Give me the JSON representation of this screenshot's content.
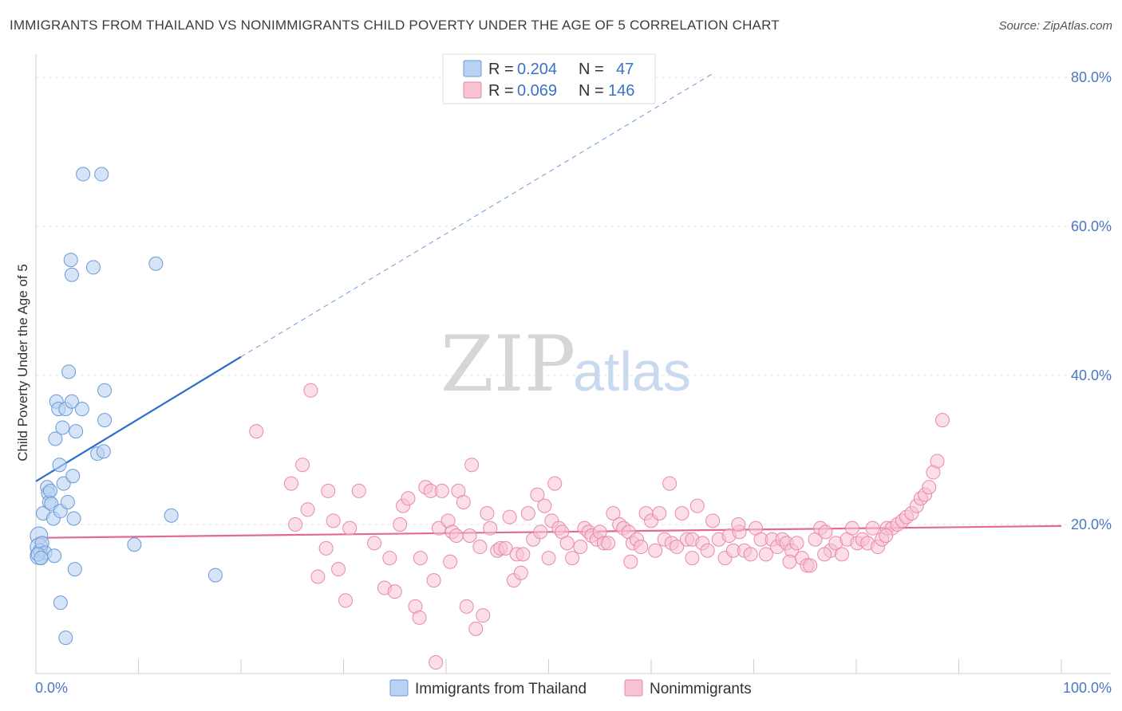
{
  "title": "IMMIGRANTS FROM THAILAND VS NONIMMIGRANTS CHILD POVERTY UNDER THE AGE OF 5 CORRELATION CHART",
  "source": "Source: ZipAtlas.com",
  "watermark": {
    "zip": "ZIP",
    "atlas": "atlas"
  },
  "legend": {
    "r_label": "R =",
    "n_label": "N =",
    "series1": {
      "r": "0.204",
      "n": "47"
    },
    "series2": {
      "r": "0.069",
      "n": "146"
    }
  },
  "colors": {
    "blue_fill": "#b9d2f2",
    "blue_stroke": "#6b9ad8",
    "blue_line": "#2f6fc9",
    "pink_fill": "#f7c2d2",
    "pink_stroke": "#e88aa8",
    "pink_line": "#e36a92",
    "label": "#4a78c2"
  },
  "chart_data": {
    "type": "scatter",
    "title": "IMMIGRANTS FROM THAILAND VS NONIMMIGRANTS CHILD POVERTY UNDER THE AGE OF 5 CORRELATION CHART",
    "xlabel": "",
    "ylabel": "Child Poverty Under the Age of 5",
    "xlim": [
      0,
      100
    ],
    "ylim": [
      0,
      82
    ],
    "y_ticks": [
      20,
      40,
      60,
      80
    ],
    "y_tick_labels": [
      "20.0%",
      "40.0%",
      "60.0%",
      "80.0%"
    ],
    "x_tick_labels": [
      "0.0%",
      "100.0%"
    ],
    "series": [
      {
        "name": "Immigrants from Thailand",
        "r": 0.204,
        "n": 47,
        "trend": {
          "x0": 0,
          "y0": 25.8,
          "x1": 20,
          "y1": 42.5,
          "dash_to_x": 66,
          "dash_to_y": 80.5
        },
        "points": [
          [
            0.3,
            18.5
          ],
          [
            0.3,
            17.0
          ],
          [
            0.3,
            15.8
          ],
          [
            0.4,
            16.5
          ],
          [
            0.6,
            17.5
          ],
          [
            0.7,
            21.5
          ],
          [
            0.9,
            16.2
          ],
          [
            1.1,
            25.0
          ],
          [
            1.2,
            24.2
          ],
          [
            1.3,
            23.0
          ],
          [
            1.4,
            24.5
          ],
          [
            1.5,
            22.8
          ],
          [
            1.7,
            20.8
          ],
          [
            1.8,
            15.8
          ],
          [
            1.9,
            31.5
          ],
          [
            2.0,
            36.5
          ],
          [
            2.2,
            35.5
          ],
          [
            2.3,
            28.0
          ],
          [
            2.4,
            21.8
          ],
          [
            2.4,
            9.5
          ],
          [
            2.6,
            33.0
          ],
          [
            2.7,
            25.5
          ],
          [
            2.9,
            35.5
          ],
          [
            2.9,
            4.8
          ],
          [
            3.1,
            23.0
          ],
          [
            3.2,
            40.5
          ],
          [
            3.4,
            55.5
          ],
          [
            3.5,
            53.5
          ],
          [
            3.5,
            36.5
          ],
          [
            3.6,
            26.5
          ],
          [
            3.7,
            20.8
          ],
          [
            3.8,
            14.0
          ],
          [
            3.9,
            32.5
          ],
          [
            4.5,
            35.5
          ],
          [
            4.6,
            67.0
          ],
          [
            5.6,
            54.5
          ],
          [
            6.0,
            29.5
          ],
          [
            6.4,
            67.0
          ],
          [
            6.6,
            29.8
          ],
          [
            6.7,
            38.0
          ],
          [
            6.7,
            34.0
          ],
          [
            9.6,
            17.3
          ],
          [
            11.7,
            55.0
          ],
          [
            13.2,
            21.2
          ],
          [
            17.5,
            13.2
          ],
          [
            0.2,
            16.0
          ],
          [
            0.5,
            15.5
          ]
        ]
      },
      {
        "name": "Nonimmigrants",
        "r": 0.069,
        "n": 146,
        "trend": {
          "x0": 0,
          "y0": 18.2,
          "x1": 100,
          "y1": 19.8
        },
        "points": [
          [
            21.5,
            32.5
          ],
          [
            24.9,
            25.5
          ],
          [
            25.3,
            20.0
          ],
          [
            26.0,
            28.0
          ],
          [
            26.5,
            22.0
          ],
          [
            26.8,
            38.0
          ],
          [
            27.5,
            13.0
          ],
          [
            28.3,
            16.8
          ],
          [
            28.5,
            24.5
          ],
          [
            29.0,
            20.5
          ],
          [
            29.5,
            14.0
          ],
          [
            30.2,
            9.8
          ],
          [
            30.6,
            19.5
          ],
          [
            31.5,
            24.5
          ],
          [
            33.0,
            17.5
          ],
          [
            34.0,
            11.5
          ],
          [
            34.5,
            15.5
          ],
          [
            35.0,
            11.0
          ],
          [
            35.5,
            20.0
          ],
          [
            35.8,
            22.5
          ],
          [
            36.3,
            23.5
          ],
          [
            37.0,
            9.0
          ],
          [
            37.4,
            7.5
          ],
          [
            37.5,
            15.5
          ],
          [
            38.0,
            25.0
          ],
          [
            38.5,
            24.5
          ],
          [
            38.8,
            12.5
          ],
          [
            39.0,
            1.5
          ],
          [
            39.3,
            19.5
          ],
          [
            39.6,
            24.5
          ],
          [
            40.2,
            20.5
          ],
          [
            40.4,
            15.0
          ],
          [
            40.6,
            19.0
          ],
          [
            41.0,
            18.5
          ],
          [
            41.2,
            24.5
          ],
          [
            41.7,
            23.0
          ],
          [
            42.0,
            9.0
          ],
          [
            42.3,
            18.5
          ],
          [
            42.5,
            28.0
          ],
          [
            42.9,
            6.0
          ],
          [
            43.3,
            17.0
          ],
          [
            43.6,
            7.8
          ],
          [
            44.0,
            21.5
          ],
          [
            44.3,
            19.5
          ],
          [
            45.0,
            16.5
          ],
          [
            45.3,
            16.8
          ],
          [
            45.8,
            16.8
          ],
          [
            46.2,
            21.0
          ],
          [
            46.6,
            12.5
          ],
          [
            46.9,
            16.0
          ],
          [
            47.3,
            13.5
          ],
          [
            47.5,
            16.0
          ],
          [
            48.0,
            21.5
          ],
          [
            48.5,
            18.0
          ],
          [
            48.9,
            24.0
          ],
          [
            49.2,
            19.0
          ],
          [
            49.6,
            22.5
          ],
          [
            50.0,
            15.5
          ],
          [
            50.3,
            20.5
          ],
          [
            50.6,
            25.5
          ],
          [
            51.0,
            19.5
          ],
          [
            51.3,
            19.0
          ],
          [
            51.8,
            17.5
          ],
          [
            52.3,
            15.5
          ],
          [
            53.1,
            17.0
          ],
          [
            53.5,
            19.5
          ],
          [
            53.9,
            19.0
          ],
          [
            54.2,
            18.5
          ],
          [
            54.7,
            18.0
          ],
          [
            55.0,
            19.0
          ],
          [
            55.4,
            17.5
          ],
          [
            55.8,
            17.5
          ],
          [
            56.3,
            21.5
          ],
          [
            56.9,
            20.0
          ],
          [
            57.3,
            19.5
          ],
          [
            57.8,
            19.0
          ],
          [
            58.2,
            17.5
          ],
          [
            58.6,
            18.0
          ],
          [
            59.0,
            17.0
          ],
          [
            59.5,
            21.5
          ],
          [
            60.0,
            20.5
          ],
          [
            60.4,
            16.5
          ],
          [
            60.8,
            21.5
          ],
          [
            61.3,
            18.0
          ],
          [
            61.8,
            25.5
          ],
          [
            62.0,
            17.5
          ],
          [
            62.5,
            17.0
          ],
          [
            63.0,
            21.5
          ],
          [
            63.5,
            18.0
          ],
          [
            64.0,
            18.0
          ],
          [
            64.5,
            22.5
          ],
          [
            65.0,
            17.5
          ],
          [
            65.5,
            16.5
          ],
          [
            66.0,
            20.5
          ],
          [
            66.6,
            18.0
          ],
          [
            67.2,
            15.5
          ],
          [
            67.6,
            18.5
          ],
          [
            68.0,
            16.5
          ],
          [
            68.6,
            19.0
          ],
          [
            69.1,
            16.5
          ],
          [
            69.7,
            16.0
          ],
          [
            70.2,
            19.5
          ],
          [
            70.7,
            18.0
          ],
          [
            71.2,
            16.0
          ],
          [
            71.8,
            18.0
          ],
          [
            72.3,
            17.0
          ],
          [
            72.8,
            18.0
          ],
          [
            73.2,
            17.5
          ],
          [
            73.7,
            16.5
          ],
          [
            74.2,
            17.5
          ],
          [
            74.7,
            15.5
          ],
          [
            75.2,
            14.5
          ],
          [
            75.5,
            14.5
          ],
          [
            76.0,
            18.0
          ],
          [
            76.5,
            19.5
          ],
          [
            77.0,
            19.0
          ],
          [
            77.5,
            16.5
          ],
          [
            78.0,
            17.5
          ],
          [
            78.6,
            16.0
          ],
          [
            79.1,
            18.0
          ],
          [
            79.6,
            19.5
          ],
          [
            80.1,
            17.5
          ],
          [
            80.6,
            18.0
          ],
          [
            81.1,
            17.5
          ],
          [
            81.6,
            19.5
          ],
          [
            82.1,
            17.0
          ],
          [
            82.5,
            18.0
          ],
          [
            83.0,
            19.5
          ],
          [
            83.5,
            19.5
          ],
          [
            84.0,
            20.0
          ],
          [
            84.5,
            20.5
          ],
          [
            84.9,
            21.0
          ],
          [
            85.4,
            21.5
          ],
          [
            85.9,
            22.5
          ],
          [
            86.3,
            23.5
          ],
          [
            86.7,
            24.0
          ],
          [
            87.1,
            25.0
          ],
          [
            87.5,
            27.0
          ],
          [
            87.9,
            28.5
          ],
          [
            88.4,
            34.0
          ],
          [
            73.5,
            15.0
          ],
          [
            64.0,
            15.5
          ],
          [
            58.0,
            15.0
          ],
          [
            68.5,
            20.0
          ],
          [
            82.9,
            18.5
          ],
          [
            76.9,
            16.0
          ]
        ]
      }
    ]
  },
  "bottom_legend": {
    "series1_label": "Immigrants from Thailand",
    "series2_label": "Nonimmigrants"
  }
}
